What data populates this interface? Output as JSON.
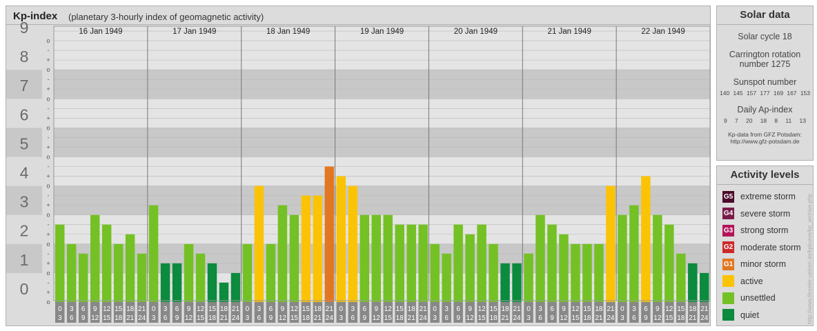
{
  "header": {
    "title": "Kp-index",
    "subtitle": "(planetary 3-hourly index of geomagnetic activity)"
  },
  "chart_data": {
    "type": "bar",
    "days": [
      "16 Jan 1949",
      "17 Jan 1949",
      "18 Jan 1949",
      "19 Jan 1949",
      "20 Jan 1949",
      "21 Jan 1949",
      "22 Jan 1949"
    ],
    "hour_bins": [
      [
        "0",
        "3"
      ],
      [
        "3",
        "6"
      ],
      [
        "6",
        "9"
      ],
      [
        "9",
        "12"
      ],
      [
        "12",
        "15"
      ],
      [
        "15",
        "18"
      ],
      [
        "18",
        "21"
      ],
      [
        "21",
        "24"
      ]
    ],
    "y_ticks": [
      "0",
      "1",
      "2",
      "3",
      "4",
      "5",
      "6",
      "7",
      "8",
      "9"
    ],
    "sub_ticks": [
      "o",
      "+",
      "-",
      "o",
      "+",
      "-",
      "o",
      "+",
      "-",
      "o",
      "+",
      "-",
      "o",
      "+",
      "-",
      "o",
      "+",
      "-",
      "o",
      "+",
      "-",
      "o",
      "+",
      "-",
      "o",
      "+",
      "-",
      "o"
    ],
    "ylim": [
      0,
      9
    ],
    "values": [
      2.667,
      2.0,
      1.667,
      3.0,
      2.667,
      2.0,
      2.333,
      1.667,
      3.333,
      1.333,
      1.333,
      2.0,
      1.667,
      1.333,
      0.667,
      1.0,
      2.0,
      4.0,
      2.0,
      3.333,
      3.0,
      3.667,
      3.667,
      4.667,
      4.333,
      4.0,
      3.0,
      3.0,
      3.0,
      2.667,
      2.667,
      2.667,
      2.0,
      1.667,
      2.667,
      2.333,
      2.667,
      2.0,
      1.333,
      1.333,
      1.667,
      3.0,
      2.667,
      2.333,
      2.0,
      2.0,
      2.0,
      4.0,
      3.0,
      3.333,
      4.333,
      3.0,
      2.667,
      1.667,
      1.333,
      1.0
    ],
    "levels": [
      "unsettled",
      "unsettled",
      "unsettled",
      "unsettled",
      "unsettled",
      "unsettled",
      "unsettled",
      "unsettled",
      "unsettled",
      "quiet",
      "quiet",
      "unsettled",
      "unsettled",
      "quiet",
      "quiet",
      "quiet",
      "unsettled",
      "active",
      "unsettled",
      "unsettled",
      "unsettled",
      "active",
      "active",
      "minor",
      "active",
      "active",
      "unsettled",
      "unsettled",
      "unsettled",
      "unsettled",
      "unsettled",
      "unsettled",
      "unsettled",
      "unsettled",
      "unsettled",
      "unsettled",
      "unsettled",
      "unsettled",
      "quiet",
      "quiet",
      "unsettled",
      "unsettled",
      "unsettled",
      "unsettled",
      "unsettled",
      "unsettled",
      "unsettled",
      "active",
      "unsettled",
      "unsettled",
      "active",
      "unsettled",
      "unsettled",
      "unsettled",
      "quiet",
      "quiet"
    ],
    "colors": {
      "quiet": "#0c8a3e",
      "unsettled": "#74c125",
      "active": "#fbc306",
      "minor": "#e27722"
    },
    "grid": true
  },
  "solar": {
    "title": "Solar data",
    "cycle": "Solar cycle 18",
    "carrington_line1": "Carrington rotation",
    "carrington_line2": "number 1275",
    "sunspot_label": "Sunspot number",
    "sunspot_values": [
      "140",
      "145",
      "157",
      "177",
      "169",
      "167",
      "153"
    ],
    "ap_label": "Daily Ap-index",
    "ap_values": [
      "9",
      "7",
      "20",
      "18",
      "8",
      "11",
      "13"
    ],
    "source_line1": "Kp-data from GFZ Potsdam:",
    "source_line2": "http://www.gfz-potsdam.de"
  },
  "legend": {
    "title": "Activity levels",
    "items": [
      {
        "code": "G5",
        "label": "extreme storm",
        "color": "#4d0a2a"
      },
      {
        "code": "G4",
        "label": "severe storm",
        "color": "#7a1b48"
      },
      {
        "code": "G3",
        "label": "strong storm",
        "color": "#b3155c"
      },
      {
        "code": "G2",
        "label": "moderate storm",
        "color": "#cc2a2a"
      },
      {
        "code": "G1",
        "label": "minor storm",
        "color": "#e27722"
      },
      {
        "code": "",
        "label": "active",
        "color": "#fbc306"
      },
      {
        "code": "",
        "label": "unsettled",
        "color": "#74c125"
      },
      {
        "code": "",
        "label": "quiet",
        "color": "#0c8a3e"
      }
    ]
  },
  "credit": "http://www.fieseler-uelzen.de/kpkurve/kp_archive.php"
}
